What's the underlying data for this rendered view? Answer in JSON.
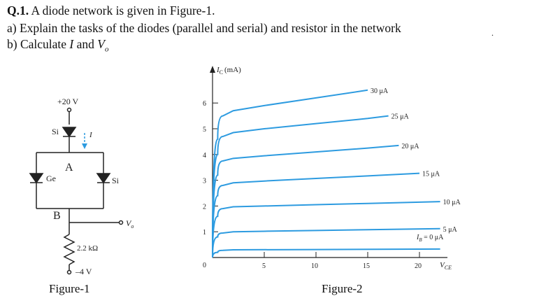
{
  "question": {
    "number": "Q.1.",
    "intro": "A diode network is given in Figure-1.",
    "part_a": "a) Explain the tasks of the diodes (parallel and serial) and resistor in the network",
    "part_b_prefix": "b) Calculate",
    "part_b_var1": "I",
    "part_b_and": "and",
    "part_b_var2": "V",
    "part_b_var2_sub": "o",
    "stray_mark": "."
  },
  "figure1": {
    "caption": "Figure-1",
    "supply_top": "+20 V",
    "supply_bottom": "–4 V",
    "diode_top_label": "Si",
    "diode_left_label": "Ge",
    "diode_right_label": "Si",
    "current_label": "I",
    "node_a": "A",
    "node_b": "B",
    "resistor_label": "2.2 kΩ",
    "output_label": "V",
    "output_sub": "o"
  },
  "figure2": {
    "caption": "Figure-2",
    "y_axis_label": "I",
    "y_axis_sub": "C",
    "y_axis_unit": "(mA)",
    "x_axis_label": "V",
    "x_axis_sub": "CE",
    "origin_label": "0",
    "zero_curve_label": "I",
    "zero_curve_sub": "B",
    "zero_curve_value": " = 0 μA",
    "curve_color": "#2d9be0"
  },
  "chart_data": {
    "type": "line",
    "title": "",
    "xlabel": "VCE",
    "ylabel": "IC (mA)",
    "xlim": [
      0,
      20
    ],
    "ylim": [
      0,
      6.8
    ],
    "x_ticks": [
      "5",
      "10",
      "15",
      "20"
    ],
    "y_ticks": [
      "1",
      "2",
      "3",
      "4",
      "5",
      "6"
    ],
    "series": [
      {
        "name": "30 μA",
        "x": [
          0,
          0.5,
          1,
          2,
          5,
          10,
          15
        ],
        "y": [
          0,
          4.6,
          5.5,
          5.7,
          5.9,
          6.2,
          6.5
        ]
      },
      {
        "name": "25 μA",
        "x": [
          0,
          0.5,
          1,
          2,
          5,
          10,
          15,
          17
        ],
        "y": [
          0,
          4.0,
          4.7,
          4.85,
          5.0,
          5.2,
          5.4,
          5.5
        ]
      },
      {
        "name": "20 μA",
        "x": [
          0,
          0.5,
          1,
          2,
          5,
          10,
          15,
          18
        ],
        "y": [
          0,
          3.2,
          3.75,
          3.85,
          3.95,
          4.1,
          4.25,
          4.35
        ]
      },
      {
        "name": "15 μA",
        "x": [
          0,
          0.5,
          1,
          2,
          5,
          10,
          15,
          20
        ],
        "y": [
          0,
          2.4,
          2.8,
          2.9,
          2.97,
          3.07,
          3.17,
          3.27
        ]
      },
      {
        "name": "10 μA",
        "x": [
          0,
          0.5,
          1,
          2,
          5,
          10,
          15,
          22
        ],
        "y": [
          0,
          1.6,
          1.9,
          1.97,
          2.0,
          2.05,
          2.1,
          2.17
        ]
      },
      {
        "name": "5 μA",
        "x": [
          0,
          0.5,
          1,
          2,
          5,
          10,
          15,
          22
        ],
        "y": [
          0,
          0.8,
          0.95,
          1.0,
          1.02,
          1.05,
          1.08,
          1.12
        ]
      },
      {
        "name": "0 μA",
        "x": [
          0,
          0.5,
          1,
          2,
          10,
          22
        ],
        "y": [
          0,
          0.2,
          0.28,
          0.3,
          0.31,
          0.33
        ]
      }
    ]
  }
}
